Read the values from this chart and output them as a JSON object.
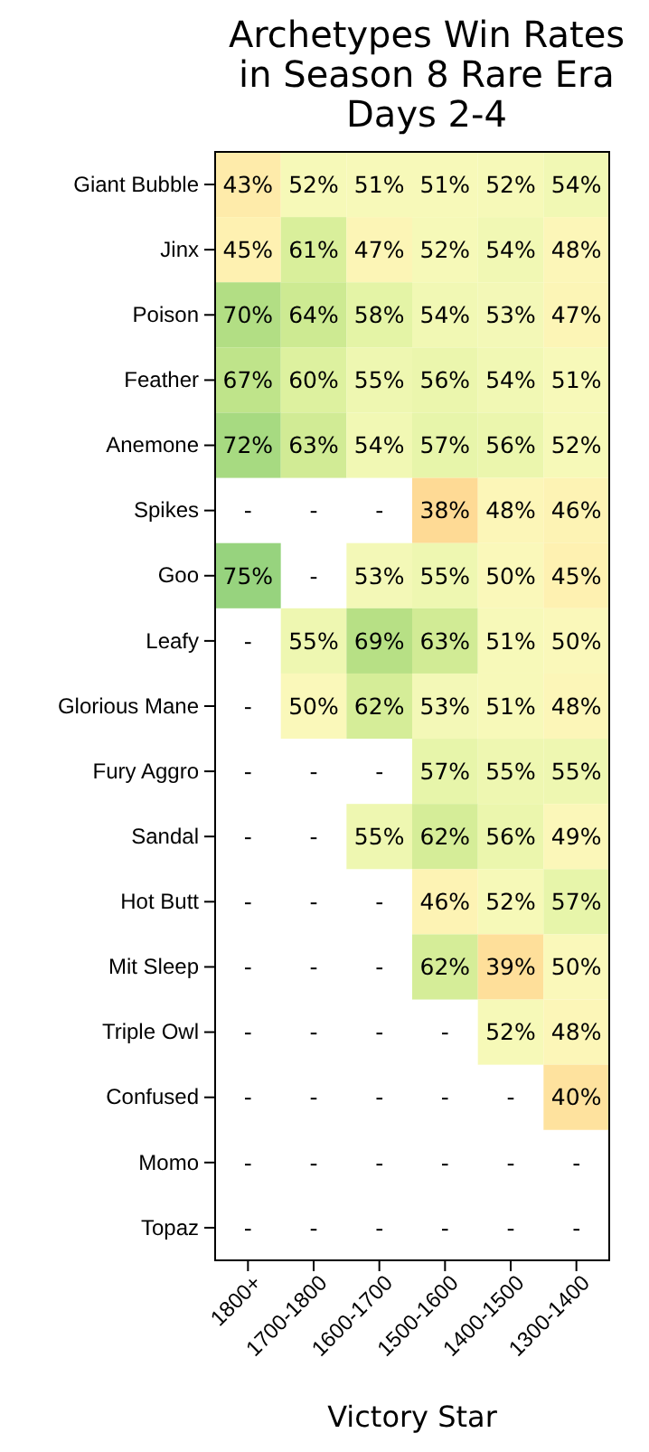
{
  "chart_data": {
    "type": "heatmap",
    "title": "Archetypes Win Rates\nin Season 8 Rare Era\nDays 2-4",
    "xlabel": "Victory Star",
    "categories": [
      "1800+",
      "1700-1800",
      "1600-1700",
      "1500-1600",
      "1400-1500",
      "1300-1400"
    ],
    "y_categories": [
      "Giant Bubble",
      "Jinx",
      "Poison",
      "Feather",
      "Anemone",
      "Spikes",
      "Goo",
      "Leafy",
      "Glorious Mane",
      "Fury Aggro",
      "Sandal",
      "Hot Butt",
      "Mit Sleep",
      "Triple Owl",
      "Confused",
      "Momo",
      "Topaz"
    ],
    "cells": [
      [
        43,
        52,
        51,
        51,
        52,
        54
      ],
      [
        45,
        61,
        47,
        52,
        54,
        48
      ],
      [
        70,
        64,
        58,
        54,
        53,
        47
      ],
      [
        67,
        60,
        55,
        56,
        54,
        51
      ],
      [
        72,
        63,
        54,
        57,
        56,
        52
      ],
      [
        null,
        null,
        null,
        38,
        48,
        46
      ],
      [
        75,
        null,
        53,
        55,
        50,
        45
      ],
      [
        null,
        55,
        69,
        63,
        51,
        50
      ],
      [
        null,
        50,
        62,
        53,
        51,
        48
      ],
      [
        null,
        null,
        null,
        57,
        55,
        55
      ],
      [
        null,
        null,
        55,
        62,
        56,
        49
      ],
      [
        null,
        null,
        null,
        46,
        52,
        57
      ],
      [
        null,
        null,
        null,
        62,
        39,
        50
      ],
      [
        null,
        null,
        null,
        null,
        52,
        48
      ],
      [
        null,
        null,
        null,
        null,
        null,
        40
      ],
      [
        null,
        null,
        null,
        null,
        null,
        null
      ],
      [
        null,
        null,
        null,
        null,
        null,
        null
      ]
    ],
    "cell_labels": [
      [
        "43%",
        "52%",
        "51%",
        "51%",
        "52%",
        "54%"
      ],
      [
        "45%",
        "61%",
        "47%",
        "52%",
        "54%",
        "48%"
      ],
      [
        "70%",
        "64%",
        "58%",
        "54%",
        "53%",
        "47%"
      ],
      [
        "67%",
        "60%",
        "55%",
        "56%",
        "54%",
        "51%"
      ],
      [
        "72%",
        "63%",
        "54%",
        "57%",
        "56%",
        "52%"
      ],
      [
        "-",
        "-",
        "-",
        "38%",
        "48%",
        "46%"
      ],
      [
        "75%",
        "-",
        "53%",
        "55%",
        "50%",
        "45%"
      ],
      [
        "-",
        "55%",
        "69%",
        "63%",
        "51%",
        "50%"
      ],
      [
        "-",
        "50%",
        "62%",
        "53%",
        "51%",
        "48%"
      ],
      [
        "-",
        "-",
        "-",
        "57%",
        "55%",
        "55%"
      ],
      [
        "-",
        "-",
        "55%",
        "62%",
        "56%",
        "49%"
      ],
      [
        "-",
        "-",
        "-",
        "46%",
        "52%",
        "57%"
      ],
      [
        "-",
        "-",
        "-",
        "62%",
        "39%",
        "50%"
      ],
      [
        "-",
        "-",
        "-",
        "-",
        "52%",
        "48%"
      ],
      [
        "-",
        "-",
        "-",
        "-",
        "-",
        "40%"
      ],
      [
        "-",
        "-",
        "-",
        "-",
        "-",
        "-"
      ],
      [
        "-",
        "-",
        "-",
        "-",
        "-",
        "-"
      ]
    ]
  }
}
